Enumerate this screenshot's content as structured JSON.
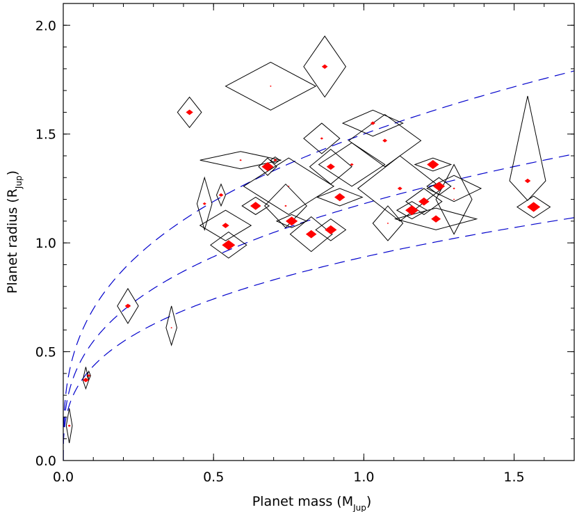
{
  "chart_data": {
    "type": "scatter",
    "title": "",
    "xlabel": {
      "main": "Planet mass  (M",
      "sub": "Jup",
      "close": ")"
    },
    "ylabel": {
      "main": "Planet radius  (R",
      "sub": "Jup",
      "close": ")"
    },
    "xlim": [
      0,
      1.7
    ],
    "ylim": [
      0,
      2.1
    ],
    "xticks": [
      {
        "value": 0,
        "label": "0.0"
      },
      {
        "value": 0.5,
        "label": "0.5"
      },
      {
        "value": 1.0,
        "label": "1.0"
      },
      {
        "value": 1.5,
        "label": "1.5"
      }
    ],
    "yticks": [
      {
        "value": 0,
        "label": "0.0"
      },
      {
        "value": 0.5,
        "label": "0.5"
      },
      {
        "value": 1.0,
        "label": "1.0"
      },
      {
        "value": 1.5,
        "label": "1.5"
      },
      {
        "value": 2.0,
        "label": "2.0"
      }
    ],
    "x_minor_step": 0.1,
    "y_minor_step": 0.1,
    "colors": {
      "points": "#ff0000",
      "error_boxes": "#000000",
      "curves": "#0000cc"
    },
    "curves_coefficients": [
      1.5,
      1.18,
      0.935
    ],
    "points": [
      {
        "x": 0.02,
        "y": 0.16,
        "xlo": 0.01,
        "xhi": 0.01,
        "ylo": 0.08,
        "yhi": 0.08,
        "w": 0.005
      },
      {
        "x": 0.075,
        "y": 0.37,
        "xlo": 0.01,
        "xhi": 0.01,
        "ylo": 0.04,
        "yhi": 0.06,
        "w": 0.01
      },
      {
        "x": 0.085,
        "y": 0.39,
        "xlo": 0.006,
        "xhi": 0.006,
        "ylo": 0.02,
        "yhi": 0.02,
        "w": 0.006
      },
      {
        "x": 0.215,
        "y": 0.71,
        "xlo": 0.035,
        "xhi": 0.035,
        "ylo": 0.08,
        "yhi": 0.08,
        "w": 0.01
      },
      {
        "x": 0.36,
        "y": 0.61,
        "xlo": 0.018,
        "xhi": 0.018,
        "ylo": 0.08,
        "yhi": 0.1,
        "w": 0.003
      },
      {
        "x": 0.42,
        "y": 1.6,
        "xlo": 0.04,
        "xhi": 0.04,
        "ylo": 0.07,
        "yhi": 0.07,
        "w": 0.012
      },
      {
        "x": 0.47,
        "y": 1.18,
        "xlo": 0.025,
        "xhi": 0.025,
        "ylo": 0.12,
        "yhi": 0.12,
        "w": 0.006
      },
      {
        "x": 0.525,
        "y": 1.22,
        "xlo": 0.015,
        "xhi": 0.015,
        "ylo": 0.05,
        "yhi": 0.05,
        "w": 0.008
      },
      {
        "x": 0.54,
        "y": 1.08,
        "xlo": 0.085,
        "xhi": 0.085,
        "ylo": 0.07,
        "yhi": 0.07,
        "w": 0.012
      },
      {
        "x": 0.55,
        "y": 0.99,
        "xlo": 0.06,
        "xhi": 0.06,
        "ylo": 0.06,
        "yhi": 0.06,
        "w": 0.022
      },
      {
        "x": 0.59,
        "y": 1.38,
        "xlo": 0.135,
        "xhi": 0.135,
        "ylo": 0.04,
        "yhi": 0.04,
        "w": 0.004
      },
      {
        "x": 0.64,
        "y": 1.17,
        "xlo": 0.045,
        "xhi": 0.045,
        "ylo": 0.04,
        "yhi": 0.04,
        "w": 0.018
      },
      {
        "x": 0.68,
        "y": 1.35,
        "xlo": 0.03,
        "xhi": 0.03,
        "ylo": 0.04,
        "yhi": 0.04,
        "w": 0.02
      },
      {
        "x": 0.69,
        "y": 1.72,
        "xlo": 0.15,
        "xhi": 0.15,
        "ylo": 0.11,
        "yhi": 0.11,
        "w": 0.003
      },
      {
        "x": 0.705,
        "y": 1.38,
        "xlo": 0.015,
        "xhi": 0.015,
        "ylo": 0.015,
        "yhi": 0.015,
        "w": 0.006
      },
      {
        "x": 0.75,
        "y": 1.26,
        "xlo": 0.15,
        "xhi": 0.15,
        "ylo": 0.13,
        "yhi": 0.13,
        "w": 0.003
      },
      {
        "x": 0.76,
        "y": 1.1,
        "xlo": 0.05,
        "xhi": 0.05,
        "ylo": 0.03,
        "yhi": 0.03,
        "w": 0.02
      },
      {
        "x": 0.74,
        "y": 1.17,
        "xlo": 0.07,
        "xhi": 0.07,
        "ylo": 0.1,
        "yhi": 0.1,
        "w": 0.004
      },
      {
        "x": 0.825,
        "y": 1.04,
        "xlo": 0.07,
        "xhi": 0.07,
        "ylo": 0.08,
        "yhi": 0.08,
        "w": 0.018
      },
      {
        "x": 0.87,
        "y": 1.81,
        "xlo": 0.07,
        "xhi": 0.07,
        "ylo": 0.14,
        "yhi": 0.14,
        "w": 0.01
      },
      {
        "x": 0.86,
        "y": 1.48,
        "xlo": 0.06,
        "xhi": 0.06,
        "ylo": 0.07,
        "yhi": 0.07,
        "w": 0.005
      },
      {
        "x": 0.89,
        "y": 1.35,
        "xlo": 0.07,
        "xhi": 0.07,
        "ylo": 0.08,
        "yhi": 0.08,
        "w": 0.014
      },
      {
        "x": 0.89,
        "y": 1.06,
        "xlo": 0.05,
        "xhi": 0.05,
        "ylo": 0.05,
        "yhi": 0.05,
        "w": 0.02
      },
      {
        "x": 0.92,
        "y": 1.21,
        "xlo": 0.075,
        "xhi": 0.075,
        "ylo": 0.04,
        "yhi": 0.04,
        "w": 0.018
      },
      {
        "x": 0.96,
        "y": 1.36,
        "xlo": 0.11,
        "xhi": 0.11,
        "ylo": 0.1,
        "yhi": 0.1,
        "w": 0.006
      },
      {
        "x": 1.03,
        "y": 1.55,
        "xlo": 0.1,
        "xhi": 0.1,
        "ylo": 0.06,
        "yhi": 0.06,
        "w": 0.008
      },
      {
        "x": 1.07,
        "y": 1.47,
        "xlo": 0.12,
        "xhi": 0.12,
        "ylo": 0.12,
        "yhi": 0.12,
        "w": 0.008
      },
      {
        "x": 1.08,
        "y": 1.09,
        "xlo": 0.05,
        "xhi": 0.05,
        "ylo": 0.08,
        "yhi": 0.08,
        "w": 0.003
      },
      {
        "x": 1.12,
        "y": 1.25,
        "xlo": 0.14,
        "xhi": 0.14,
        "ylo": 0.15,
        "yhi": 0.15,
        "w": 0.008
      },
      {
        "x": 1.16,
        "y": 1.15,
        "xlo": 0.05,
        "xhi": 0.05,
        "ylo": 0.04,
        "yhi": 0.04,
        "w": 0.022
      },
      {
        "x": 1.2,
        "y": 1.19,
        "xlo": 0.06,
        "xhi": 0.06,
        "ylo": 0.06,
        "yhi": 0.06,
        "w": 0.018
      },
      {
        "x": 1.23,
        "y": 1.36,
        "xlo": 0.06,
        "xhi": 0.06,
        "ylo": 0.03,
        "yhi": 0.03,
        "w": 0.02
      },
      {
        "x": 1.25,
        "y": 1.26,
        "xlo": 0.04,
        "xhi": 0.04,
        "ylo": 0.04,
        "yhi": 0.04,
        "w": 0.02
      },
      {
        "x": 1.24,
        "y": 1.11,
        "xlo": 0.135,
        "xhi": 0.135,
        "ylo": 0.05,
        "yhi": 0.05,
        "w": 0.016
      },
      {
        "x": 1.3,
        "y": 1.2,
        "xlo": 0.06,
        "xhi": 0.06,
        "ylo": 0.16,
        "yhi": 0.16,
        "w": 0.003
      },
      {
        "x": 1.3,
        "y": 1.25,
        "xlo": 0.09,
        "xhi": 0.09,
        "ylo": 0.06,
        "yhi": 0.06,
        "w": 0.004
      },
      {
        "x": 1.545,
        "y": 1.285,
        "xlo": 0.06,
        "xhi": 0.06,
        "ylo": 0.09,
        "yhi": 0.39,
        "w": 0.01
      },
      {
        "x": 1.565,
        "y": 1.165,
        "xlo": 0.055,
        "xhi": 0.055,
        "ylo": 0.05,
        "yhi": 0.05,
        "w": 0.022
      }
    ]
  }
}
